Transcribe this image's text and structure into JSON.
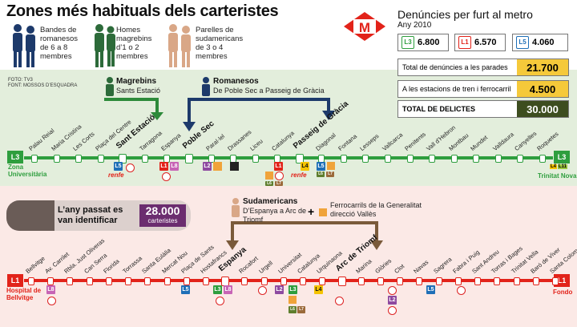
{
  "title": "Zones més habituals dels carteristes",
  "legend": [
    {
      "text": "Bandes de romanesos de 6 a 8 membres",
      "lines": [
        "Bandes de",
        "romanesos",
        "de 6 a 8",
        "membres"
      ]
    },
    {
      "text": "Homes magrebins d’1 o 2 membres",
      "lines": [
        "Homes",
        "magrebins",
        "d’1 o 2",
        "membres"
      ]
    },
    {
      "text": "Parelles de sudamericans de 3 o 4 membres",
      "lines": [
        "Parelles de",
        "sudamericans",
        "de 3 o 4",
        "membres"
      ]
    }
  ],
  "sources": [
    "FOTO: TV3",
    "FONT: MOSSOS D’ESQUADRA"
  ],
  "metro_panel": {
    "title": "Denúncies per furt al metro",
    "subtitle": "Any 2010",
    "logo": "M",
    "lines": [
      {
        "code": "L3",
        "value": "6.800",
        "color": "#2e9e3e"
      },
      {
        "code": "L1",
        "value": "6.570",
        "color": "#e2231a"
      },
      {
        "code": "L5",
        "value": "4.060",
        "color": "#1f6fb7"
      }
    ],
    "stats": [
      {
        "label": "Total de denúncies a les parades",
        "value": "21.700",
        "bg": "#f5c93a"
      },
      {
        "label": "A les estacions de tren i ferrocarril",
        "value": "4.500",
        "bg": "#f5c93a"
      },
      {
        "label": "TOTAL DE DELICTES",
        "value": "30.000",
        "bg": "#3d4d1f"
      }
    ]
  },
  "groups": {
    "magrebins": {
      "name": "Magrebins",
      "where": "Sants Estació"
    },
    "romanesos": {
      "name": "Romanesos",
      "where": "De Poble Sec a Passeig de Gràcia"
    },
    "sudamericans": {
      "name": "Sudamericans",
      "where": "D’Espanya a Arc de Triomf"
    },
    "ferrocarrils": {
      "plus": "+",
      "text": "Ferrocarrils de la Generalitat direcció Vallès"
    }
  },
  "identified": {
    "text": "L’any passat es van identificar",
    "value": "28.000",
    "unit": "carteristes"
  },
  "l3": {
    "code": "L3",
    "end_left": "Zona Universitària",
    "end_right": "Trinitat Nova",
    "end_right_badges": [
      "L4",
      "L11"
    ],
    "stations": [
      "Palau Reial",
      "Maria Cristina",
      "Les Corts",
      "Plaça del Centre",
      "Sant Estació",
      "Tarragona",
      "Espanya",
      "Poble Sec",
      "Paral·lel",
      "Drassanes",
      "Liceu",
      "Catalunya",
      "Passeig de Gràcia",
      "Diagonal",
      "Fontana",
      "Lesseps",
      "Vallcarca",
      "Penitents",
      "Vall d’Hebron",
      "Montbau",
      "Mundet",
      "Valldaura",
      "Canyelles",
      "Roquetes"
    ],
    "badges": {
      "L5": "L5",
      "L1": "L1",
      "L8": "L8",
      "L2": "L2",
      "L3": "L3",
      "L4": "L4",
      "L7": "L7",
      "L6": "L6",
      "renfe": "renfe"
    }
  },
  "l1": {
    "code": "L1",
    "end_left": "Hospital de Bellvitge",
    "end_right": "Fondo",
    "stations": [
      "Bellvitge",
      "Av. Carrilet",
      "Rbla. Just Oliveras",
      "Can Serra",
      "Florida",
      "Torrassa",
      "Santa Eulàlia",
      "Mercat Nou",
      "Plaça de Sants",
      "Hostafrancs",
      "Espanya",
      "Rocafort",
      "Urgell",
      "Universitat",
      "Catalunya",
      "Urquinaona",
      "Arc de Triomf",
      "Marina",
      "Glòries",
      "Clot",
      "Navas",
      "Sagrera",
      "Fabra i Puig",
      "Sant Andreu",
      "Torras i Bages",
      "Trinitat Vella",
      "Baró de Viver",
      "Santa Coloma"
    ]
  },
  "colors": {
    "green": "#2e9e3e",
    "red": "#e2231a",
    "blue": "#1f6fb7",
    "brown": "#7a5a3a",
    "navy": "#1d3a6b",
    "greenArrow": "#2d8a3a"
  }
}
